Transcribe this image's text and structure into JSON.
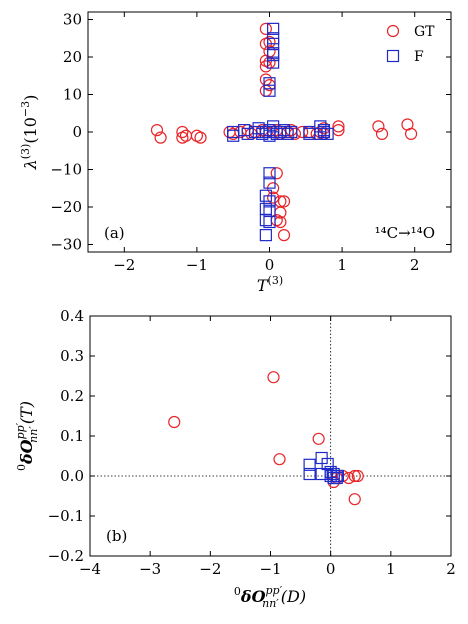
{
  "chart_data": [
    {
      "type": "scatter",
      "panel_label": "(a)",
      "annotation": "¹⁴C→¹⁴O",
      "xlabel": "T",
      "xlabel_sup": "(3)",
      "ylabel": "λ",
      "ylabel_sup": "(3)",
      "ylabel_suffix": "(10",
      "ylabel_exp": "−3",
      "ylabel_close": ")",
      "xlim": [
        -2.5,
        2.5
      ],
      "ylim": [
        -32,
        32
      ],
      "xticks": [
        -2,
        -1,
        0,
        1,
        2
      ],
      "yticks": [
        -30,
        -20,
        -10,
        0,
        10,
        20,
        30
      ],
      "legend_placement": "top-right",
      "series": [
        {
          "name": "GT",
          "color": "#e8262a",
          "marker": "circle",
          "points": [
            [
              -0.05,
              27.5
            ],
            [
              0.0,
              24.0
            ],
            [
              -0.05,
              23.5
            ],
            [
              0.0,
              21.5
            ],
            [
              -0.05,
              19.0
            ],
            [
              0.0,
              18.5
            ],
            [
              -0.05,
              17.5
            ],
            [
              -0.05,
              14.0
            ],
            [
              0.0,
              12.5
            ],
            [
              -0.05,
              11.0
            ],
            [
              -1.55,
              0.5
            ],
            [
              -1.5,
              -1.5
            ],
            [
              -1.2,
              0.0
            ],
            [
              -1.2,
              -1.5
            ],
            [
              -1.15,
              -1.0
            ],
            [
              -1.0,
              -1.0
            ],
            [
              -0.95,
              -1.5
            ],
            [
              -0.55,
              0.0
            ],
            [
              -0.5,
              -0.5
            ],
            [
              -0.4,
              0.0
            ],
            [
              -0.3,
              0.5
            ],
            [
              -0.25,
              -0.5
            ],
            [
              -0.2,
              0.0
            ],
            [
              -0.1,
              0.5
            ],
            [
              -0.05,
              0.0
            ],
            [
              0.05,
              0.0
            ],
            [
              0.1,
              0.5
            ],
            [
              0.15,
              -0.5
            ],
            [
              0.25,
              0.0
            ],
            [
              0.3,
              0.5
            ],
            [
              0.35,
              -0.5
            ],
            [
              0.45,
              0.0
            ],
            [
              0.55,
              0.0
            ],
            [
              0.65,
              -0.5
            ],
            [
              0.7,
              0.0
            ],
            [
              0.75,
              1.0
            ],
            [
              0.75,
              -0.5
            ],
            [
              0.95,
              1.5
            ],
            [
              0.95,
              0.5
            ],
            [
              1.5,
              1.5
            ],
            [
              1.55,
              -0.5
            ],
            [
              1.9,
              2.0
            ],
            [
              1.95,
              -0.5
            ],
            [
              0.1,
              -11.0
            ],
            [
              0.05,
              -15.0
            ],
            [
              0.05,
              -17.5
            ],
            [
              0.15,
              -18.5
            ],
            [
              0.2,
              -18.5
            ],
            [
              0.15,
              -21.5
            ],
            [
              0.15,
              -24.0
            ],
            [
              0.1,
              -23.5
            ],
            [
              0.2,
              -27.5
            ]
          ]
        },
        {
          "name": "F",
          "color": "#1f2bc8",
          "marker": "square",
          "points": [
            [
              0.05,
              27.5
            ],
            [
              0.05,
              25.0
            ],
            [
              0.05,
              23.5
            ],
            [
              0.05,
              21.0
            ],
            [
              0.05,
              20.5
            ],
            [
              0.05,
              18.5
            ],
            [
              0.0,
              13.0
            ],
            [
              0.0,
              11.0
            ],
            [
              -0.5,
              0.0
            ],
            [
              -0.5,
              -1.0
            ],
            [
              -0.35,
              0.5
            ],
            [
              -0.3,
              -0.5
            ],
            [
              -0.2,
              0.0
            ],
            [
              -0.15,
              1.0
            ],
            [
              -0.1,
              -0.5
            ],
            [
              -0.05,
              0.0
            ],
            [
              0.0,
              0.5
            ],
            [
              0.0,
              -1.0
            ],
            [
              0.05,
              0.0
            ],
            [
              0.05,
              1.5
            ],
            [
              0.1,
              -0.5
            ],
            [
              0.15,
              0.0
            ],
            [
              0.2,
              0.5
            ],
            [
              0.25,
              -0.5
            ],
            [
              0.3,
              0.0
            ],
            [
              0.55,
              0.0
            ],
            [
              0.55,
              -0.5
            ],
            [
              0.7,
              1.5
            ],
            [
              0.7,
              -0.5
            ],
            [
              0.75,
              0.5
            ],
            [
              0.75,
              0.0
            ],
            [
              0.8,
              -0.5
            ],
            [
              0.0,
              -11.0
            ],
            [
              0.0,
              -13.5
            ],
            [
              -0.05,
              -17.0
            ],
            [
              0.0,
              -18.5
            ],
            [
              -0.05,
              -20.5
            ],
            [
              0.0,
              -21.0
            ],
            [
              -0.05,
              -23.5
            ],
            [
              0.0,
              -24.0
            ],
            [
              -0.05,
              -27.5
            ]
          ]
        }
      ]
    },
    {
      "type": "scatter",
      "panel_label": "(b)",
      "xlabel": "δO",
      "xlabel_prefix_sup": "0",
      "xlabel_sup": "pp′",
      "xlabel_sub": "nn′",
      "xlabel_arg": "(D)",
      "ylabel": "δO",
      "ylabel_prefix_sup": "0",
      "ylabel_sup": "pp′",
      "ylabel_sub": "nn′",
      "ylabel_arg": "(T)",
      "xlim": [
        -4,
        2
      ],
      "ylim": [
        -0.2,
        0.4
      ],
      "xticks": [
        -4,
        -3,
        -2,
        -1,
        0,
        1,
        2
      ],
      "xtick_labels": [
        "−4",
        "−3",
        "−2",
        "−1",
        "0",
        "1",
        "2"
      ],
      "yticks": [
        -0.2,
        -0.1,
        0.0,
        0.1,
        0.2,
        0.3,
        0.4
      ],
      "ytick_labels": [
        "−0.2",
        "−0.1",
        "0.0",
        "0.1",
        "0.2",
        "0.3",
        "0.4"
      ],
      "reference_lines": {
        "x": 0,
        "y": 0
      },
      "series": [
        {
          "name": "GT",
          "color": "#e8262a",
          "marker": "circle",
          "points": [
            [
              -2.6,
              0.135
            ],
            [
              -0.95,
              0.247
            ],
            [
              -0.85,
              0.042
            ],
            [
              -0.2,
              0.093
            ],
            [
              0.05,
              -0.015
            ],
            [
              0.1,
              -0.005
            ],
            [
              0.2,
              0.0
            ],
            [
              0.3,
              -0.005
            ],
            [
              0.4,
              0.0
            ],
            [
              0.45,
              0.0
            ],
            [
              0.4,
              -0.058
            ]
          ]
        },
        {
          "name": "F",
          "color": "#1f2bc8",
          "marker": "square",
          "points": [
            [
              -0.35,
              0.028
            ],
            [
              -0.35,
              0.005
            ],
            [
              -0.15,
              0.045
            ],
            [
              -0.15,
              0.005
            ],
            [
              -0.05,
              0.03
            ],
            [
              0.0,
              0.01
            ],
            [
              0.0,
              0.0
            ],
            [
              0.05,
              -0.005
            ],
            [
              0.1,
              0.0
            ],
            [
              0.05,
              0.005
            ],
            [
              0.1,
              -0.005
            ],
            [
              0.12,
              0.0
            ]
          ]
        }
      ]
    }
  ]
}
